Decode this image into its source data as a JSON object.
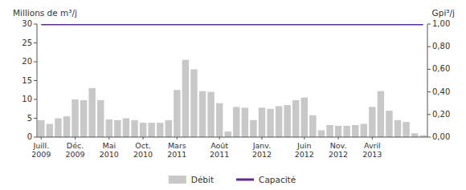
{
  "chart_data": {
    "type": "bar",
    "ylabel": "Millions de m³/j",
    "y2label": "Gpi³/j",
    "categories": [
      "Juill.\n2009",
      null,
      null,
      null,
      "Déc.\n2009",
      null,
      null,
      null,
      "Mai\n2010",
      null,
      null,
      null,
      "Oct.\n2010",
      null,
      null,
      null,
      "Mars\n2011",
      null,
      null,
      null,
      null,
      "Août\n2011",
      null,
      null,
      null,
      null,
      "Janv.\n2012",
      null,
      null,
      null,
      null,
      "Juin\n2012",
      null,
      null,
      null,
      "Nov.\n2012",
      null,
      null,
      null,
      "Avril\n2013",
      null,
      null,
      null,
      null,
      null,
      null
    ],
    "series": [
      {
        "name": "Débit",
        "type": "bar",
        "color": "#c8c8c8",
        "values": [
          4.5,
          3.5,
          5.0,
          5.5,
          10.0,
          9.8,
          13.0,
          9.8,
          4.7,
          4.5,
          5.0,
          4.5,
          3.8,
          3.8,
          3.8,
          4.5,
          12.5,
          20.5,
          18.0,
          12.2,
          12.0,
          9.0,
          1.5,
          8.0,
          7.8,
          4.5,
          7.8,
          7.5,
          8.2,
          8.5,
          9.8,
          10.5,
          5.8,
          1.8,
          3.2,
          3.0,
          3.0,
          3.2,
          3.5,
          8.0,
          12.2,
          7.0,
          4.5,
          4.0,
          1.0,
          0.5
        ]
      },
      {
        "name": "Capacité",
        "type": "line",
        "axis": "y2",
        "color": "#5b2d8e",
        "values": [
          1.0,
          1.0,
          1.0,
          1.0,
          1.0,
          1.0,
          1.0,
          1.0,
          1.0,
          1.0,
          1.0,
          1.0,
          1.0,
          1.0,
          1.0,
          1.0,
          1.0,
          1.0,
          1.0,
          1.0,
          1.0,
          1.0,
          1.0,
          1.0,
          1.0,
          1.0,
          1.0,
          1.0,
          1.0,
          1.0,
          1.0,
          1.0,
          1.0,
          1.0,
          1.0,
          1.0,
          1.0,
          1.0,
          1.0,
          1.0,
          1.0,
          1.0,
          1.0,
          1.0,
          1.0,
          1.0
        ]
      }
    ],
    "ylim": [
      0,
      30
    ],
    "yticks": [
      0,
      5,
      10,
      15,
      20,
      25,
      30
    ],
    "y2lim": [
      0,
      1.0
    ],
    "y2ticks": [
      {
        "value": 0.0,
        "label": "0,00"
      },
      {
        "value": 0.2,
        "label": "0,20"
      },
      {
        "value": 0.4,
        "label": "0,40"
      },
      {
        "value": 0.6,
        "label": "0,60"
      },
      {
        "value": 0.8,
        "label": "0,80"
      },
      {
        "value": 1.0,
        "label": "1,00"
      }
    ],
    "grid": false,
    "legend": "bottom"
  }
}
